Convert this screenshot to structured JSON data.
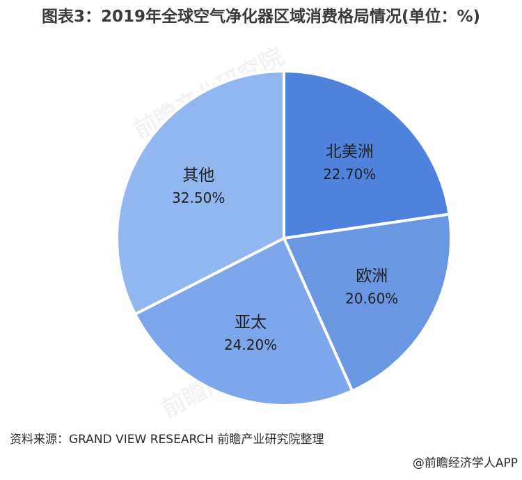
{
  "title": "图表3：2019年全球空气净化器区域消费格局情况(单位：%)",
  "chart_data": {
    "type": "pie",
    "title": "图表3：2019年全球空气净化器区域消费格局情况(单位：%)",
    "slices": [
      {
        "label": "北美洲",
        "value": 22.7,
        "display": "22.70%",
        "color": "#4f82dc"
      },
      {
        "label": "欧洲",
        "value": 20.6,
        "display": "20.60%",
        "color": "#6a97e2"
      },
      {
        "label": "亚太",
        "value": 24.2,
        "display": "24.20%",
        "color": "#7ea6ea"
      },
      {
        "label": "其他",
        "value": 32.5,
        "display": "32.50%",
        "color": "#92b6ef"
      }
    ],
    "start_angle_deg": 0,
    "direction": "clockwise",
    "legend": "none"
  },
  "source": "资料来源：GRAND VIEW RESEARCH 前瞻产业研究院整理",
  "credit": "@前瞻经济学人APP",
  "watermark": "前瞻产业研究院"
}
